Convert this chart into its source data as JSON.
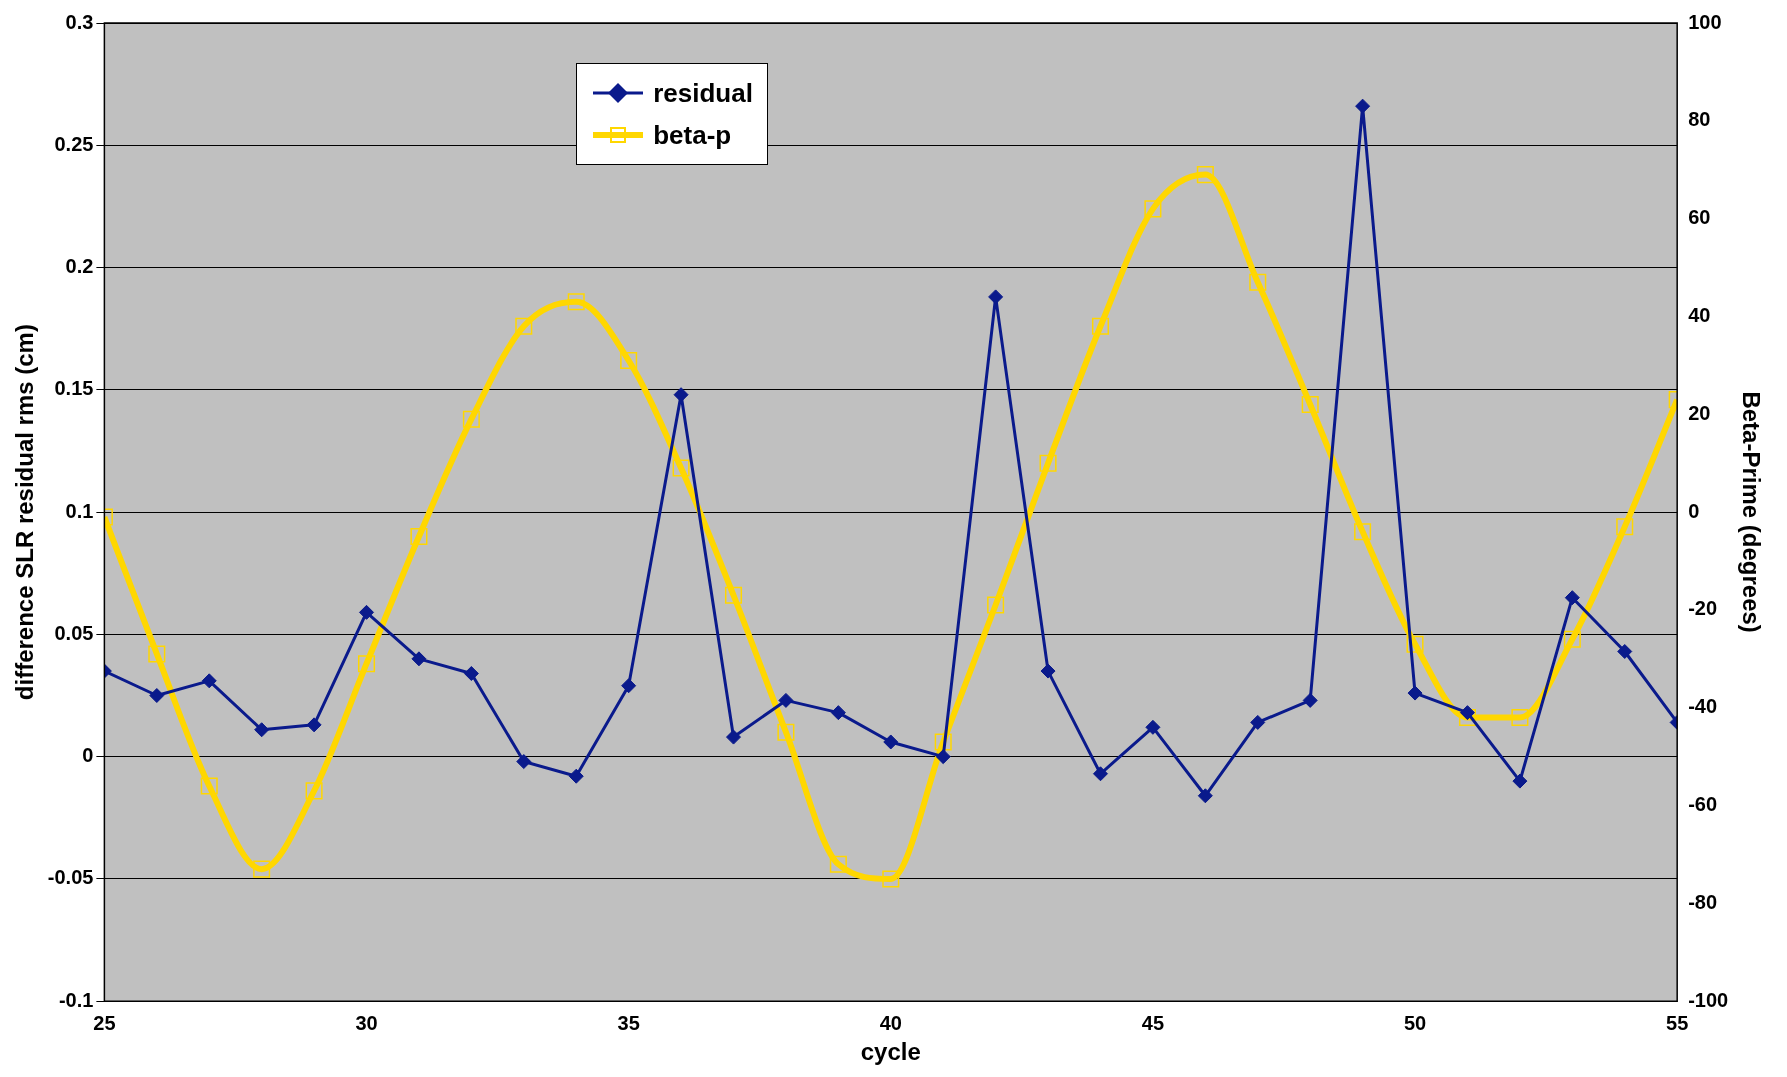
{
  "chart_data": {
    "type": "line",
    "xlabel": "cycle",
    "ylabel": "difference SLR residual rms (cm)",
    "y2label": "Beta-Prime (degrees)",
    "x": [
      25,
      26,
      27,
      28,
      29,
      30,
      31,
      32,
      33,
      34,
      35,
      36,
      37,
      38,
      39,
      40,
      41,
      42,
      43,
      44,
      45,
      46,
      47,
      48,
      49,
      50,
      51,
      52,
      53,
      54,
      55
    ],
    "series": [
      {
        "name": "residual",
        "color": "#0a1a8c",
        "marker": "diamond",
        "values": [
          0.035,
          0.025,
          0.031,
          0.011,
          0.013,
          0.059,
          0.04,
          0.034,
          -0.002,
          -0.008,
          0.029,
          0.148,
          0.008,
          0.023,
          0.018,
          0.006,
          0.0,
          0.188,
          0.035,
          -0.007,
          0.012,
          -0.016,
          0.014,
          0.023,
          0.266,
          0.026,
          0.018,
          -0.01,
          0.065,
          0.043,
          0.014
        ]
      },
      {
        "name": "beta-p",
        "color": "#ffd700",
        "marker": "square",
        "axis": "y2",
        "values": [
          -1,
          -29,
          -56,
          -73,
          -57,
          -31,
          -5,
          19,
          38,
          43,
          31,
          9,
          -17,
          -45,
          -72,
          -75,
          -47,
          -19,
          10,
          38,
          62,
          69,
          47,
          22,
          -4,
          -27,
          -42,
          -42,
          -26,
          -3,
          23
        ]
      }
    ],
    "xlim": [
      25,
      55
    ],
    "xticks": [
      25,
      30,
      35,
      40,
      45,
      50,
      55
    ],
    "ylim": [
      -0.1,
      0.3
    ],
    "yticks": [
      -0.1,
      -0.05,
      0,
      0.05,
      0.1,
      0.15,
      0.2,
      0.25,
      0.3
    ],
    "y2lim": [
      -100,
      100
    ],
    "y2ticks": [
      -100,
      -80,
      -60,
      -40,
      -20,
      0,
      20,
      40,
      60,
      80,
      100
    ],
    "grid": "y",
    "legend": "top left"
  }
}
